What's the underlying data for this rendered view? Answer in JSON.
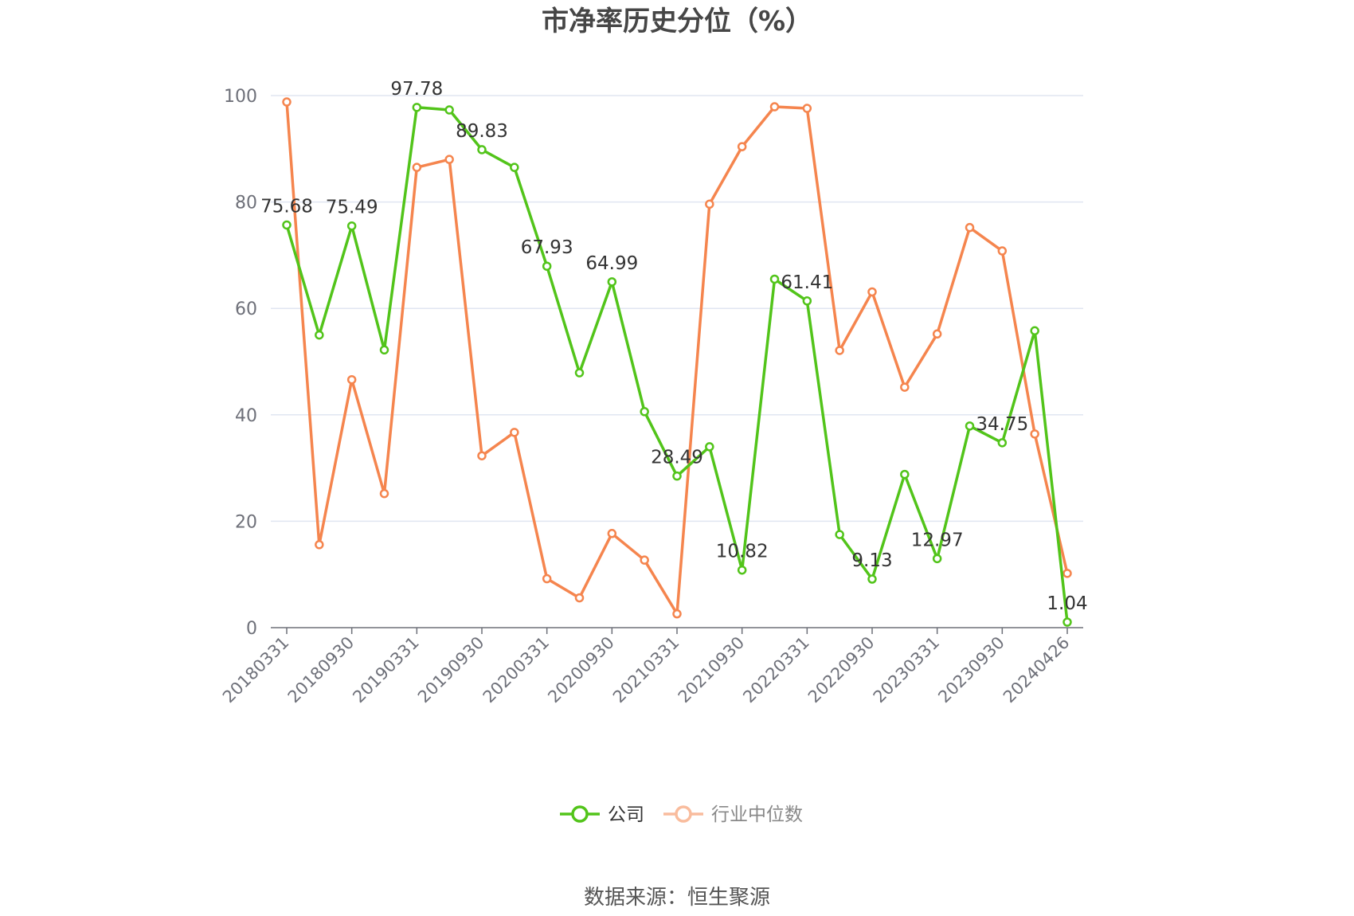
{
  "chart_data": {
    "type": "line",
    "title": "市净率历史分位（%）",
    "source": "数据来源：恒生聚源",
    "ylim": [
      0,
      100
    ],
    "yticks": [
      "0",
      "20",
      "40",
      "60",
      "80",
      "100"
    ],
    "grid": true,
    "legend_position": "bottom-center",
    "x": [
      "20180331",
      "20180630",
      "20180930",
      "20181231",
      "20190331",
      "20190630",
      "20190930",
      "20191231",
      "20200331",
      "20200630",
      "20200930",
      "20201231",
      "20210331",
      "20210630",
      "20210930",
      "20211231",
      "20220331",
      "20220630",
      "20220930",
      "20221231",
      "20230331",
      "20230630",
      "20230930",
      "20231231",
      "20240426"
    ],
    "xticks_shown": [
      "20180331",
      "20180930",
      "20190331",
      "20190930",
      "20200331",
      "20200930",
      "20210331",
      "20210930",
      "20220331",
      "20220930",
      "20230331",
      "20230930",
      "20240426"
    ],
    "series": [
      {
        "name": "公司",
        "color": "#52c41a",
        "values": [
          75.68,
          55.0,
          75.49,
          52.2,
          97.78,
          97.3,
          89.83,
          86.5,
          67.93,
          47.9,
          64.99,
          40.6,
          28.49,
          34.0,
          10.82,
          65.5,
          61.41,
          17.5,
          9.13,
          28.8,
          12.97,
          37.9,
          34.75,
          55.8,
          1.04
        ],
        "labels": [
          "75.68",
          "",
          "75.49",
          "",
          "97.78",
          "",
          "89.83",
          "",
          "67.93",
          "",
          "64.99",
          "",
          "28.49",
          "",
          "10.82",
          "",
          "61.41",
          "",
          "9.13",
          "",
          "12.97",
          "",
          "34.75",
          "",
          "1.04"
        ]
      },
      {
        "name": "行业中位数",
        "color": "#f5854e",
        "values": [
          98.8,
          15.6,
          46.6,
          25.2,
          86.5,
          88.0,
          32.3,
          36.7,
          9.2,
          5.6,
          17.7,
          12.7,
          2.6,
          79.6,
          90.4,
          97.9,
          97.6,
          52.1,
          63.1,
          45.2,
          55.2,
          75.2,
          70.8,
          36.4,
          10.2
        ],
        "labels": []
      }
    ]
  }
}
